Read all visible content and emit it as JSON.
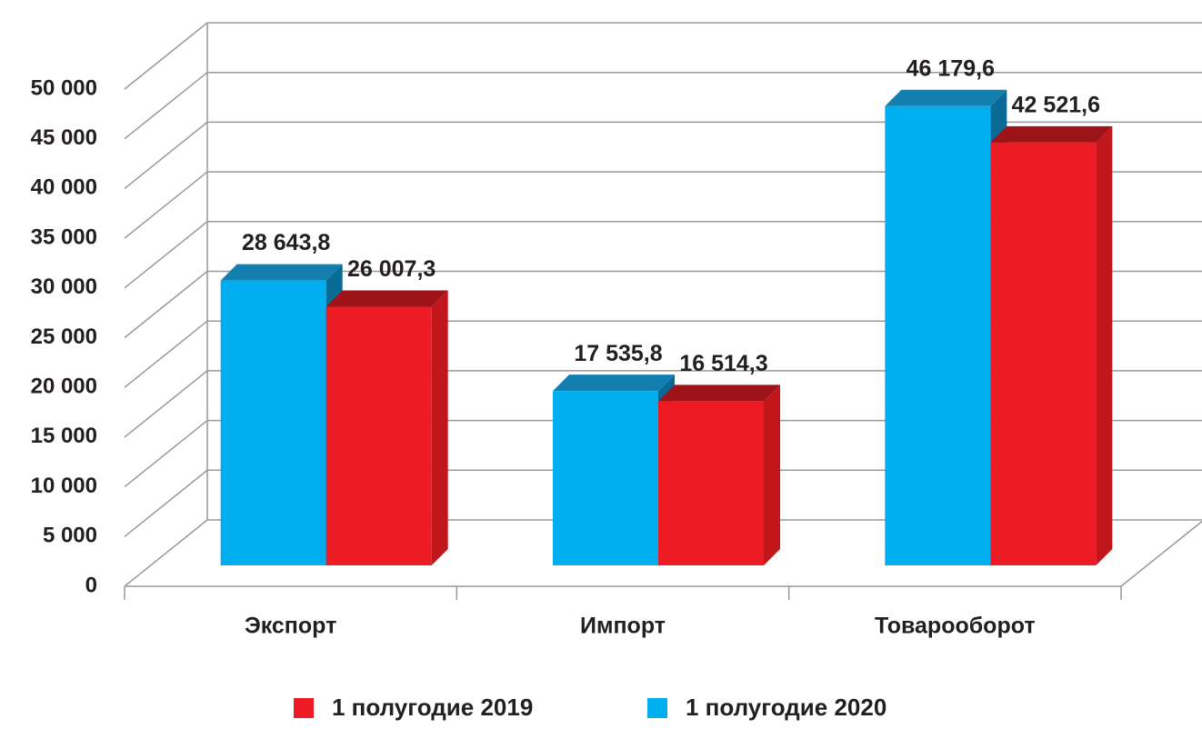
{
  "chart_data": {
    "type": "bar3d",
    "categories": [
      "Экспорт",
      "Импорт",
      "Товарооборот"
    ],
    "series": [
      {
        "name": "1 полугодие 2019",
        "color": "#ed1c24",
        "values": [
          26007.3,
          16514.3,
          42521.6
        ],
        "value_labels": [
          "26 007,3",
          "16 514,3",
          "42 521,6"
        ]
      },
      {
        "name": "1 полугодие 2020",
        "color": "#00adef",
        "values": [
          28643.8,
          17535.8,
          46179.6
        ],
        "value_labels": [
          "28 643,8",
          "17 535,8",
          "46 179,6"
        ]
      }
    ],
    "ylim": [
      0,
      50000
    ],
    "yticks": [
      0,
      {
        "value": 5000,
        "label": "5 000"
      },
      {
        "value": 10000,
        "label": "10 000"
      },
      {
        "value": 15000,
        "label": "15 000"
      },
      {
        "value": 20000,
        "label": "20 000"
      },
      {
        "value": 25000,
        "label": "25 000"
      },
      {
        "value": 30000,
        "label": "30 000"
      },
      {
        "value": 35000,
        "label": "35 000"
      },
      {
        "value": 40000,
        "label": "40 000"
      },
      {
        "value": 45000,
        "label": "45 000"
      },
      {
        "value": 50000,
        "label": "50 000"
      }
    ],
    "grid": true
  }
}
